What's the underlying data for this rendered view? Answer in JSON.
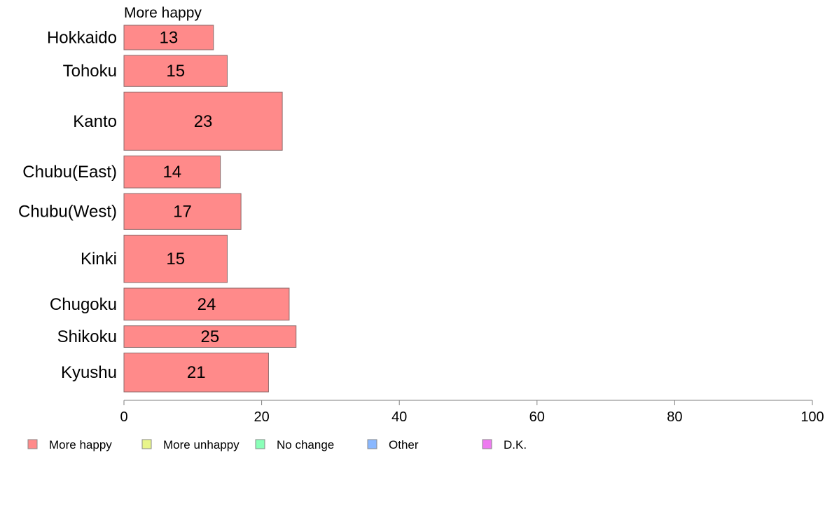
{
  "chart_data": {
    "type": "bar",
    "orientation": "horizontal",
    "stacked": true,
    "series_title": "More happy",
    "categories": [
      "Hokkaido",
      "Tohoku",
      "Kanto",
      "Chubu(East)",
      "Chubu(West)",
      "Kinki",
      "Chugoku",
      "Shikoku",
      "Kyushu"
    ],
    "category_weights": [
      0.75,
      0.95,
      1.78,
      0.98,
      1.1,
      1.45,
      0.98,
      0.66,
      1.19
    ],
    "series": [
      {
        "name": "More happy",
        "color": "#ff8a8a",
        "values": [
          13,
          15,
          23,
          14,
          17,
          15,
          24,
          25,
          21
        ],
        "labels": [
          "13",
          "15",
          "23",
          "14",
          "17",
          "15",
          "24",
          "25",
          "21"
        ]
      }
    ],
    "xlim": [
      0,
      100
    ],
    "xticks": [
      0,
      20,
      40,
      60,
      80,
      100
    ],
    "xtick_labels": [
      "0",
      "20",
      "40",
      "60",
      "80",
      "100"
    ],
    "grid": false,
    "legend_position": "bottom",
    "legend": [
      {
        "label": "More happy",
        "color": "#ff8a8a"
      },
      {
        "label": "More unhappy",
        "color": "#e8f58a"
      },
      {
        "label": "No change",
        "color": "#8affb8"
      },
      {
        "label": "Other",
        "color": "#8ab8ff"
      },
      {
        "label": "D.K.",
        "color": "#ee7bf0"
      }
    ]
  }
}
